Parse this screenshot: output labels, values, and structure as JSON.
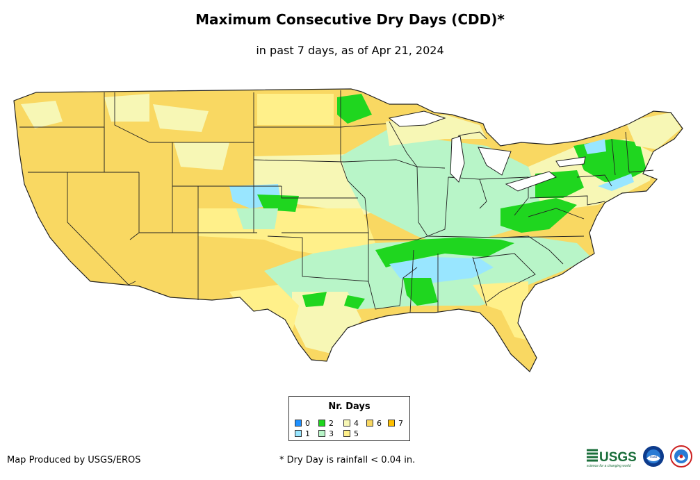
{
  "header": {
    "title": "Maximum Consecutive Dry Days (CDD)*",
    "subtitle": "in past 7 days, as of Apr 21, 2024"
  },
  "legend": {
    "title": "Nr. Days",
    "items": [
      {
        "label": "0",
        "color": "#1e90ff"
      },
      {
        "label": "1",
        "color": "#99e6ff"
      },
      {
        "label": "2",
        "color": "#1fd61f"
      },
      {
        "label": "3",
        "color": "#b8f5c8"
      },
      {
        "label": "4",
        "color": "#f7f7b5"
      },
      {
        "label": "5",
        "color": "#fff08a"
      },
      {
        "label": "6",
        "color": "#f9d862"
      },
      {
        "label": "7",
        "color": "#ffc000"
      }
    ]
  },
  "footer": {
    "producer": "Map Produced by USGS/EROS",
    "note": "* Dry Day is rainfall < 0.04 in."
  },
  "logos": {
    "usgs_text": "USGS",
    "usgs_tagline": "science for a changing world",
    "noaa_text": "noaa"
  }
}
